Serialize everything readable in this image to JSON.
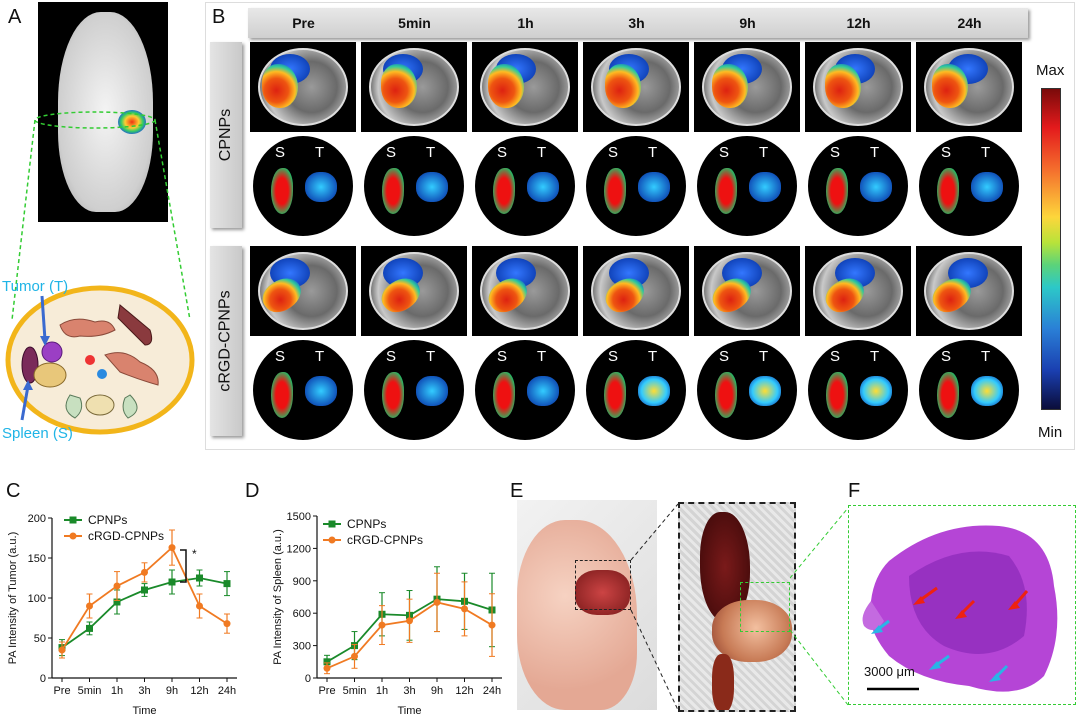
{
  "panels": {
    "a": "A",
    "b": "B",
    "c": "C",
    "d": "D",
    "e": "E",
    "f": "F"
  },
  "panel_a": {
    "tumor_label": "Tumor (T)",
    "spleen_label": "Spleen (S)"
  },
  "panel_b": {
    "time_labels": [
      "Pre",
      "5min",
      "1h",
      "3h",
      "9h",
      "12h",
      "24h"
    ],
    "row_labels": [
      "CPNPs",
      "cRGD-CPNPs"
    ],
    "organ_labels": {
      "s": "S",
      "t": "T"
    },
    "colorbar": {
      "max": "Max",
      "min": "Min"
    }
  },
  "panel_f": {
    "scalebar": "3000 μm"
  },
  "chart_data": [
    {
      "type": "line",
      "xlabel": "Time",
      "ylabel": "PA Intensity of Tumor (a.u.)",
      "categories": [
        "Pre",
        "5min",
        "1h",
        "3h",
        "9h",
        "12h",
        "24h"
      ],
      "ylim": [
        0,
        200
      ],
      "yticks": [
        0,
        50,
        100,
        150,
        200
      ],
      "annotation": "*",
      "series": [
        {
          "name": "CPNPs",
          "color": "#1a8a2a",
          "values": [
            38,
            62,
            95,
            110,
            120,
            125,
            118
          ],
          "err": [
            10,
            8,
            15,
            8,
            15,
            10,
            15
          ]
        },
        {
          "name": "cRGD-CPNPs",
          "color": "#f07a22",
          "values": [
            35,
            90,
            115,
            132,
            163,
            90,
            68
          ],
          "err": [
            10,
            15,
            18,
            12,
            22,
            15,
            12
          ]
        }
      ]
    },
    {
      "type": "line",
      "xlabel": "Time",
      "ylabel": "PA Intensity of Spleen (a.u.)",
      "categories": [
        "Pre",
        "5min",
        "1h",
        "3h",
        "9h",
        "12h",
        "24h"
      ],
      "ylim": [
        0,
        1500
      ],
      "yticks": [
        0,
        300,
        600,
        900,
        1200,
        1500
      ],
      "series": [
        {
          "name": "CPNPs",
          "color": "#1a8a2a",
          "values": [
            150,
            300,
            590,
            580,
            730,
            710,
            630
          ],
          "err": [
            60,
            130,
            200,
            230,
            300,
            260,
            340
          ]
        },
        {
          "name": "cRGD-CPNPs",
          "color": "#f07a22",
          "values": [
            90,
            200,
            490,
            530,
            700,
            640,
            490
          ],
          "err": [
            50,
            110,
            180,
            200,
            270,
            250,
            290
          ]
        }
      ]
    }
  ]
}
